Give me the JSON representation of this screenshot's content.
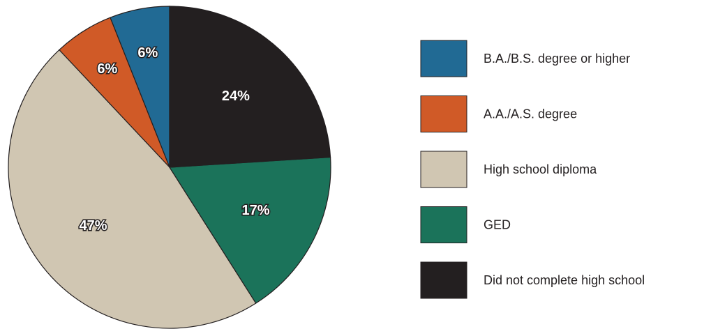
{
  "chart_data": {
    "type": "pie",
    "categories": [
      "B.A./B.S. degree or higher",
      "A.A./A.S. degree",
      "High school diploma",
      "GED",
      "Did not complete high school"
    ],
    "values": [
      6,
      6,
      47,
      17,
      24
    ],
    "value_labels": [
      "6%",
      "6%",
      "47%",
      "17%",
      "24%"
    ],
    "colors": [
      "#216a94",
      "#d05a27",
      "#d0c6b2",
      "#1b735a",
      "#231f20"
    ],
    "legend": "right"
  }
}
